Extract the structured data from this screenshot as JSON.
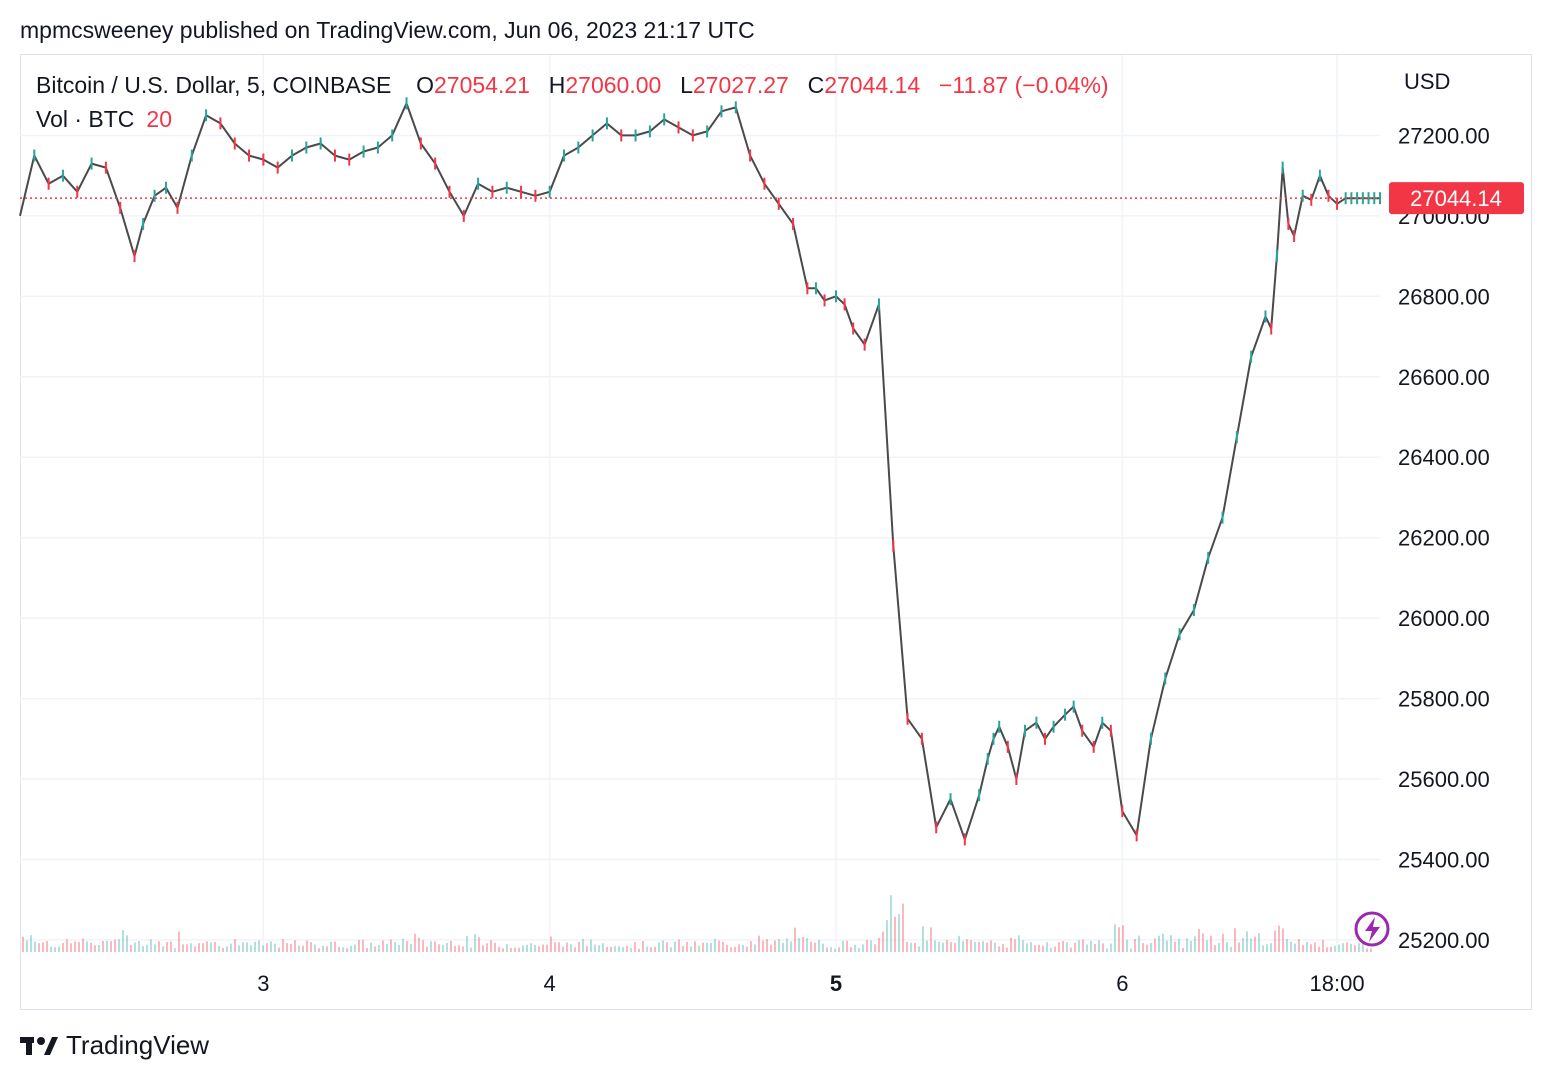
{
  "header": {
    "publish_line": "mpmcsweeney published on TradingView.com, Jun 06, 2023 21:17 UTC"
  },
  "legend": {
    "symbol": "Bitcoin / U.S. Dollar, 5, COINBASE",
    "o_label": "O",
    "o_value": "27054.21",
    "h_label": "H",
    "h_value": "27060.00",
    "l_label": "L",
    "l_value": "27027.27",
    "c_label": "C",
    "c_value": "27044.14",
    "change": "−11.87 (−0.04%)",
    "vol_label": "Vol · BTC",
    "vol_value": "20"
  },
  "footer": {
    "brand": "TradingView"
  },
  "colors": {
    "up": "#26a69a",
    "down": "#f23645",
    "line": "#4a4a4a",
    "last_price": "#f23645",
    "grid": "#f0f3fa"
  },
  "chart_data": {
    "type": "line",
    "title": "",
    "currency_label": "USD",
    "y_ticks": [
      "27200.00",
      "27000.00",
      "26800.00",
      "26600.00",
      "26400.00",
      "26200.00",
      "26000.00",
      "25800.00",
      "25600.00",
      "25400.00",
      "25200.00"
    ],
    "y_tick_values": [
      27200,
      27000,
      26800,
      26600,
      26400,
      26200,
      26000,
      25800,
      25600,
      25400,
      25200
    ],
    "ylim": [
      25170,
      27400
    ],
    "xlim": [
      2.15,
      6.9
    ],
    "x_ticks": [
      {
        "label": "3",
        "x": 3,
        "bold": false
      },
      {
        "label": "4",
        "x": 4,
        "bold": false
      },
      {
        "label": "5",
        "x": 5,
        "bold": true
      },
      {
        "label": "6",
        "x": 6,
        "bold": false
      },
      {
        "label": "18:00",
        "x": 6.75,
        "bold": false
      }
    ],
    "last_price": 27044.14,
    "last_price_label": "27044.14",
    "series": [
      {
        "x": [
          2.15,
          2.2,
          2.25,
          2.3,
          2.35,
          2.4,
          2.45,
          2.5,
          2.55,
          2.58,
          2.62,
          2.66,
          2.7,
          2.75,
          2.8,
          2.85,
          2.9,
          2.95,
          3.0,
          3.05,
          3.1,
          3.15,
          3.2,
          3.25,
          3.3,
          3.35,
          3.4,
          3.45,
          3.5,
          3.55,
          3.6,
          3.65,
          3.7,
          3.75,
          3.8,
          3.85,
          3.9,
          3.95,
          4.0,
          4.05,
          4.1,
          4.15,
          4.2,
          4.25,
          4.3,
          4.35,
          4.4,
          4.45,
          4.5,
          4.55,
          4.6,
          4.65,
          4.7,
          4.75,
          4.8,
          4.85,
          4.9,
          4.93,
          4.96,
          5.0,
          5.03,
          5.06,
          5.1,
          5.15,
          5.2,
          5.25,
          5.3,
          5.35,
          5.4,
          5.45,
          5.5,
          5.53,
          5.55,
          5.57,
          5.6,
          5.63,
          5.66,
          5.7,
          5.73,
          5.76,
          5.8,
          5.83,
          5.86,
          5.9,
          5.93,
          5.96,
          6.0,
          6.05,
          6.1,
          6.15,
          6.2,
          6.25,
          6.3,
          6.35,
          6.4,
          6.45,
          6.5,
          6.52,
          6.54,
          6.56,
          6.58,
          6.6,
          6.63,
          6.66,
          6.69,
          6.72,
          6.75,
          6.78,
          6.8,
          6.82,
          6.84,
          6.86,
          6.88,
          6.9
        ],
        "values": [
          27000,
          27150,
          27080,
          27100,
          27060,
          27130,
          27120,
          27020,
          26900,
          26980,
          27050,
          27070,
          27020,
          27150,
          27250,
          27230,
          27180,
          27150,
          27140,
          27120,
          27150,
          27170,
          27180,
          27150,
          27140,
          27160,
          27170,
          27200,
          27280,
          27180,
          27130,
          27060,
          27000,
          27080,
          27060,
          27070,
          27060,
          27050,
          27060,
          27150,
          27170,
          27200,
          27230,
          27200,
          27200,
          27210,
          27240,
          27220,
          27200,
          27210,
          27260,
          27270,
          27150,
          27080,
          27030,
          26980,
          26820,
          26820,
          26790,
          26800,
          26780,
          26720,
          26680,
          26780,
          26180,
          25750,
          25700,
          25480,
          25550,
          25450,
          25560,
          25650,
          25700,
          25730,
          25680,
          25600,
          25720,
          25740,
          25700,
          25730,
          25760,
          25780,
          25720,
          25680,
          25740,
          25720,
          25520,
          25460,
          25700,
          25850,
          25960,
          26020,
          26150,
          26250,
          26450,
          26650,
          26750,
          26720,
          26900,
          27120,
          26980,
          26950,
          27050,
          27040,
          27100,
          27050,
          27030,
          27044,
          27044,
          27044,
          27044,
          27044,
          27044,
          27044
        ],
        "name": ""
      }
    ]
  }
}
